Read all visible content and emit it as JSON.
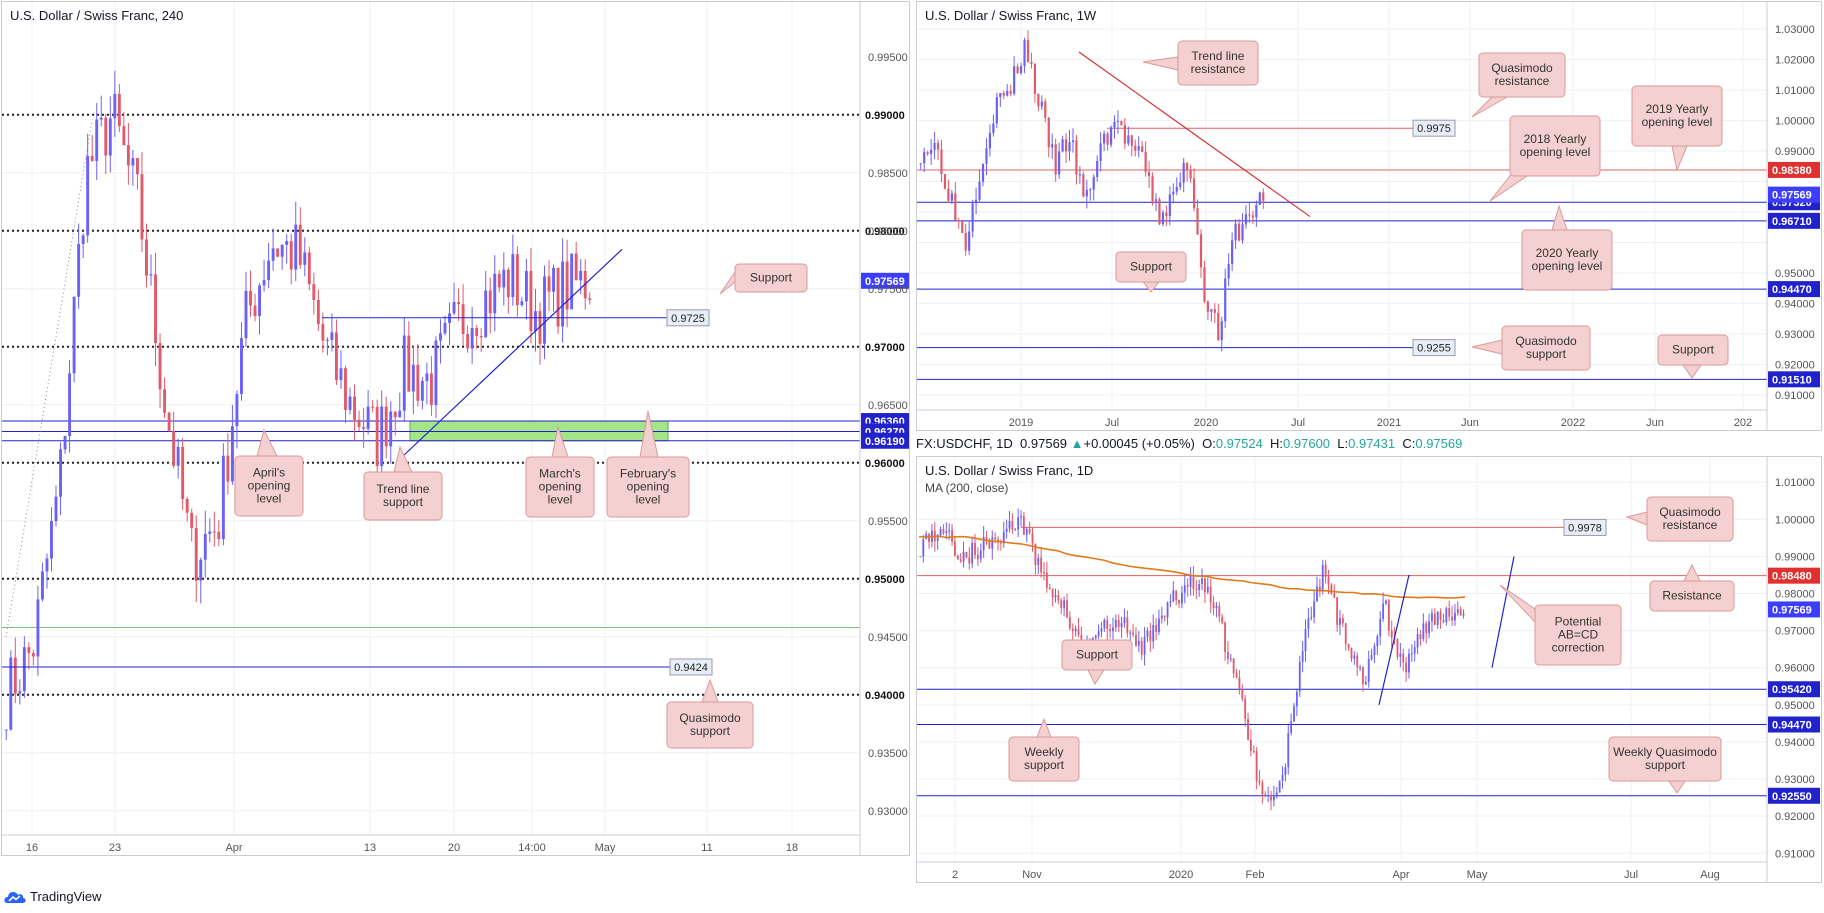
{
  "branding": {
    "logo_text": "TradingView"
  },
  "colors": {
    "candle_up": "#6b62f5",
    "candle_down": "#e05a6a",
    "hline_blue": "#2222cc",
    "hline_red": "#e06060",
    "callout_bg": "#f4d0d0",
    "callout_border": "#d99a9a",
    "zone_green": "#a6e48a",
    "ma_orange": "#e07a1a",
    "grid": "#eef0f3"
  },
  "panels": {
    "h4": {
      "title": "U.S. Dollar / Swiss Franc, 240"
    },
    "w1": {
      "title": "U.S. Dollar / Swiss Franc, 1W"
    },
    "d1": {
      "title": "U.S. Dollar / Swiss Franc, 1D",
      "indicator": "MA (200, close)",
      "toolbar": {
        "symbol": "FX:USDCHF, 1D",
        "last": "0.97569",
        "change": "+0.00045 (+0.05%)",
        "o_label": "O:",
        "o": "0.97524",
        "h_label": "H:",
        "h": "0.97600",
        "l_label": "L:",
        "l": "0.97431",
        "c_label": "C:",
        "c": "0.97569"
      }
    }
  },
  "chart_data": [
    {
      "id": "h4",
      "type": "candlestick",
      "title": "U.S. Dollar / Swiss Franc, 240",
      "xlabel": "",
      "ylabel": "",
      "ylim": [
        0.928,
        0.998
      ],
      "x_tick_labels": [
        "16",
        "23",
        "Apr",
        "13",
        "20",
        "14:00",
        "May",
        "11",
        "18"
      ],
      "y_tick_labels": [
        "0.99500",
        "0.98500",
        "0.98000",
        "0.97500",
        "0.96500",
        "0.95500",
        "0.94500",
        "0.93500",
        "0.93000"
      ],
      "levels": [
        {
          "value": 0.99,
          "label": "0.99000",
          "style": "dotted-black"
        },
        {
          "value": 0.98,
          "label": "0.98000",
          "style": "dotted-black"
        },
        {
          "value": 0.97,
          "label": "0.97000",
          "style": "dotted-black"
        },
        {
          "value": 0.96,
          "label": "0.96000",
          "style": "dotted-black"
        },
        {
          "value": 0.95,
          "label": "0.95000",
          "style": "dotted-black"
        },
        {
          "value": 0.94,
          "label": "0.94000",
          "style": "dotted-black"
        },
        {
          "value": 0.9636,
          "label": "0.96360",
          "style": "blue-box"
        },
        {
          "value": 0.9627,
          "label": "0.96270",
          "style": "blue-box"
        },
        {
          "value": 0.9619,
          "label": "0.96190",
          "style": "blue-box"
        },
        {
          "value": 0.9725,
          "tag": "0.9725",
          "style": "blue-line"
        },
        {
          "value": 0.9424,
          "tag": "0.9424",
          "style": "blue-line"
        },
        {
          "value": 0.9458,
          "style": "green-thin"
        }
      ],
      "last_price": {
        "value": 0.97569,
        "label": "0.97569"
      },
      "zone": {
        "from": 0.9619,
        "to": 0.9636
      },
      "annotations": [
        "Support",
        "April's opening level",
        "Trend line support",
        "March's opening level",
        "February's opening level",
        "Quasimodo support"
      ]
    },
    {
      "id": "w1",
      "type": "candlestick",
      "title": "U.S. Dollar / Swiss Franc, 1W",
      "xlabel": "",
      "ylabel": "",
      "ylim": [
        0.907,
        1.033
      ],
      "x_tick_labels": [
        "2019",
        "Jul",
        "2020",
        "Jul",
        "2021",
        "Jun",
        "2022",
        "Jun",
        "202"
      ],
      "y_tick_labels": [
        "1.03000",
        "1.02000",
        "1.01000",
        "1.00000",
        "0.99000",
        "0.95000",
        "0.94000",
        "0.93000",
        "0.92000",
        "0.91000"
      ],
      "levels": [
        {
          "value": 0.9838,
          "label": "0.98380",
          "style": "red-box"
        },
        {
          "value": 0.9732,
          "label": "0.97320",
          "style": "blue-box"
        },
        {
          "value": 0.9671,
          "label": "0.96710",
          "style": "blue-box"
        },
        {
          "value": 0.9447,
          "label": "0.94470",
          "style": "blue-box"
        },
        {
          "value": 0.9151,
          "label": "0.91510",
          "style": "blue-box"
        },
        {
          "value": 0.9975,
          "tag": "0.9975",
          "style": "red-line"
        },
        {
          "value": 0.9255,
          "tag": "0.9255",
          "style": "blue-line"
        }
      ],
      "last_price": {
        "value": 0.97569,
        "label": "0.97569"
      },
      "annotations": [
        "Trend line resistance",
        "Quasimodo resistance",
        "2019 Yearly opening level",
        "2018 Yearly opening level",
        "2020 Yearly opening level",
        "Support",
        "Quasimodo support",
        "Support"
      ]
    },
    {
      "id": "d1",
      "type": "candlestick",
      "title": "U.S. Dollar / Swiss Franc, 1D",
      "xlabel": "",
      "ylabel": "",
      "ylim": [
        0.909,
        1.013
      ],
      "x_tick_labels": [
        "2",
        "Nov",
        "2020",
        "Feb",
        "Apr",
        "May",
        "Jul",
        "Aug"
      ],
      "y_tick_labels": [
        "1.01000",
        "1.00000",
        "0.99000",
        "0.98000",
        "0.97000",
        "0.96000",
        "0.95000",
        "0.94000",
        "0.93000",
        "0.92000",
        "0.91000"
      ],
      "levels": [
        {
          "value": 0.9848,
          "label": "0.98480",
          "style": "red-box"
        },
        {
          "value": 0.9542,
          "label": "0.95420",
          "style": "blue-box"
        },
        {
          "value": 0.9447,
          "label": "0.94470",
          "style": "blue-box"
        },
        {
          "value": 0.9255,
          "label": "0.92550",
          "style": "blue-box"
        },
        {
          "value": 0.9978,
          "tag": "0.9978",
          "style": "red-line"
        }
      ],
      "last_price": {
        "value": 0.97569,
        "label": "0.97569"
      },
      "ma_name": "MA (200, close)",
      "annotations": [
        "Quasimodo resistance",
        "Resistance",
        "Potential AB=CD correction",
        "Support",
        "Weekly support",
        "Weekly Quasimodo support"
      ]
    }
  ]
}
